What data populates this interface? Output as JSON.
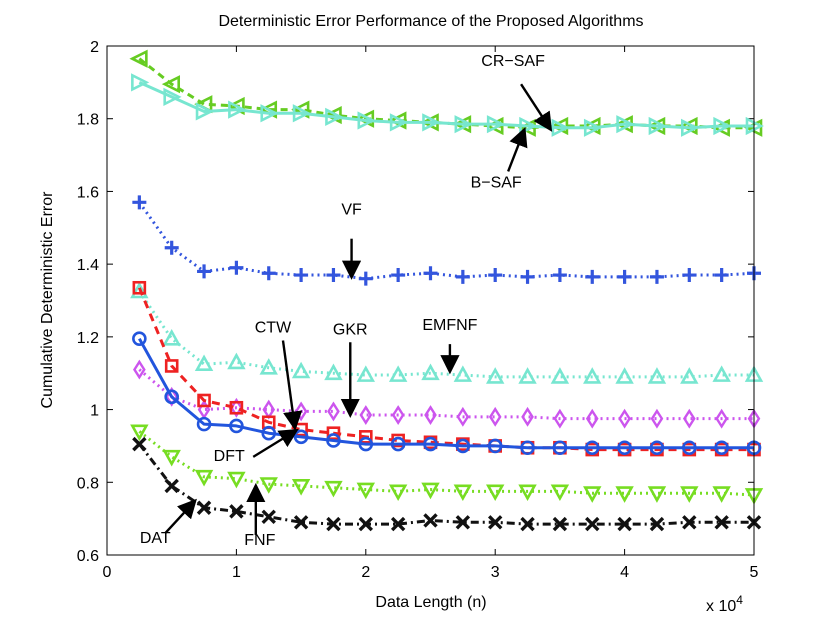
{
  "chart_data": {
    "type": "line",
    "title": "Deterministic Error Performance of the Proposed Algorithms",
    "xlabel": "Data Length (n)",
    "ylabel": "Cumulative Deterministic Error",
    "x_multiplier_label": "x 10",
    "x_multiplier_exp": "4",
    "xlim": [
      0,
      5
    ],
    "ylim": [
      0.6,
      2
    ],
    "xticks": [
      "0",
      "1",
      "2",
      "3",
      "4",
      "5"
    ],
    "yticks": [
      "0.6",
      "0.8",
      "1",
      "1.2",
      "1.4",
      "1.6",
      "1.8",
      "2"
    ],
    "x": [
      0.25,
      0.5,
      0.75,
      1.0,
      1.25,
      1.5,
      1.75,
      2.0,
      2.25,
      2.5,
      2.75,
      3.0,
      3.25,
      3.5,
      3.75,
      4.0,
      4.25,
      4.5,
      4.75,
      5.0
    ],
    "series": [
      {
        "name": "CR-SAF",
        "color": "#66cc22",
        "dash": "7,5",
        "marker": "triangle-left",
        "values": [
          1.965,
          1.895,
          1.84,
          1.835,
          1.825,
          1.825,
          1.81,
          1.8,
          1.795,
          1.79,
          1.785,
          1.78,
          1.775,
          1.78,
          1.78,
          1.785,
          1.78,
          1.78,
          1.775,
          1.775
        ]
      },
      {
        "name": "B-SAF",
        "color": "#77e6d0",
        "dash": "",
        "marker": "triangle-right",
        "values": [
          1.9,
          1.86,
          1.82,
          1.825,
          1.815,
          1.815,
          1.805,
          1.795,
          1.79,
          1.79,
          1.785,
          1.785,
          1.78,
          1.775,
          1.775,
          1.785,
          1.78,
          1.775,
          1.78,
          1.78
        ]
      },
      {
        "name": "VF",
        "color": "#3355dd",
        "dash": "2,4",
        "marker": "plus",
        "values": [
          1.57,
          1.445,
          1.38,
          1.39,
          1.375,
          1.37,
          1.37,
          1.36,
          1.37,
          1.375,
          1.365,
          1.37,
          1.365,
          1.37,
          1.365,
          1.365,
          1.365,
          1.37,
          1.37,
          1.375
        ]
      },
      {
        "name": "EMFNF",
        "color": "#77e6d0",
        "dash": "2,4",
        "marker": "triangle-up",
        "values": [
          1.325,
          1.195,
          1.125,
          1.13,
          1.115,
          1.105,
          1.1,
          1.095,
          1.095,
          1.1,
          1.095,
          1.09,
          1.09,
          1.09,
          1.09,
          1.09,
          1.09,
          1.09,
          1.095,
          1.095
        ]
      },
      {
        "name": "GKR",
        "color": "#cc55ee",
        "dash": "2,4",
        "marker": "diamond",
        "values": [
          1.11,
          1.035,
          1.0,
          1.005,
          1.0,
          0.995,
          0.995,
          0.985,
          0.985,
          0.985,
          0.98,
          0.98,
          0.98,
          0.975,
          0.975,
          0.975,
          0.975,
          0.975,
          0.975,
          0.975
        ]
      },
      {
        "name": "CTW",
        "color": "#ee2222",
        "dash": "8,6",
        "marker": "square",
        "values": [
          1.335,
          1.12,
          1.025,
          1.005,
          0.965,
          0.945,
          0.935,
          0.925,
          0.915,
          0.91,
          0.905,
          0.9,
          0.895,
          0.895,
          0.89,
          0.89,
          0.89,
          0.89,
          0.89,
          0.89
        ]
      },
      {
        "name": "DFT",
        "color": "#2255dd",
        "dash": "",
        "marker": "circle",
        "values": [
          1.195,
          1.035,
          0.96,
          0.955,
          0.935,
          0.925,
          0.915,
          0.905,
          0.905,
          0.905,
          0.9,
          0.9,
          0.895,
          0.895,
          0.895,
          0.895,
          0.895,
          0.895,
          0.895,
          0.895
        ]
      },
      {
        "name": "FNF",
        "color": "#77dd22",
        "dash": "2,4",
        "marker": "triangle-down",
        "values": [
          0.94,
          0.87,
          0.815,
          0.81,
          0.795,
          0.79,
          0.785,
          0.78,
          0.775,
          0.78,
          0.775,
          0.775,
          0.775,
          0.775,
          0.77,
          0.77,
          0.77,
          0.77,
          0.77,
          0.765
        ]
      },
      {
        "name": "DAT",
        "color": "#111111",
        "dash": "8,4,2,4",
        "marker": "x",
        "values": [
          0.905,
          0.79,
          0.73,
          0.72,
          0.705,
          0.69,
          0.685,
          0.685,
          0.685,
          0.695,
          0.69,
          0.69,
          0.685,
          0.685,
          0.685,
          0.685,
          0.685,
          0.69,
          0.69,
          0.69
        ]
      }
    ],
    "annotations": [
      {
        "text": "CR−SAF",
        "anchor_x": 3.2,
        "anchor_y": 1.895,
        "tip_x": 3.42,
        "tip_y": 1.775
      },
      {
        "text": "B−SAF",
        "anchor_x": 3.1,
        "anchor_y": 1.655,
        "tip_x": 3.22,
        "tip_y": 1.765
      },
      {
        "text": "VF",
        "anchor_x": 1.89,
        "anchor_y": 1.47,
        "tip_x": 1.89,
        "tip_y": 1.37
      },
      {
        "text": "CTW",
        "anchor_x": 1.36,
        "anchor_y": 1.19,
        "tip_x": 1.45,
        "tip_y": 0.955
      },
      {
        "text": "GKR",
        "anchor_x": 1.88,
        "anchor_y": 1.185,
        "tip_x": 1.88,
        "tip_y": 0.99
      },
      {
        "text": "EMFNF",
        "anchor_x": 2.65,
        "anchor_y": 1.18,
        "tip_x": 2.65,
        "tip_y": 1.11
      },
      {
        "text": "DFT",
        "anchor_x": 1.13,
        "anchor_y": 0.87,
        "tip_x": 1.45,
        "tip_y": 0.94
      },
      {
        "text": "DAT",
        "anchor_x": 0.45,
        "anchor_y": 0.66,
        "tip_x": 0.67,
        "tip_y": 0.745
      },
      {
        "text": "FNF",
        "anchor_x": 1.15,
        "anchor_y": 0.655,
        "tip_x": 1.15,
        "tip_y": 0.785
      }
    ]
  }
}
